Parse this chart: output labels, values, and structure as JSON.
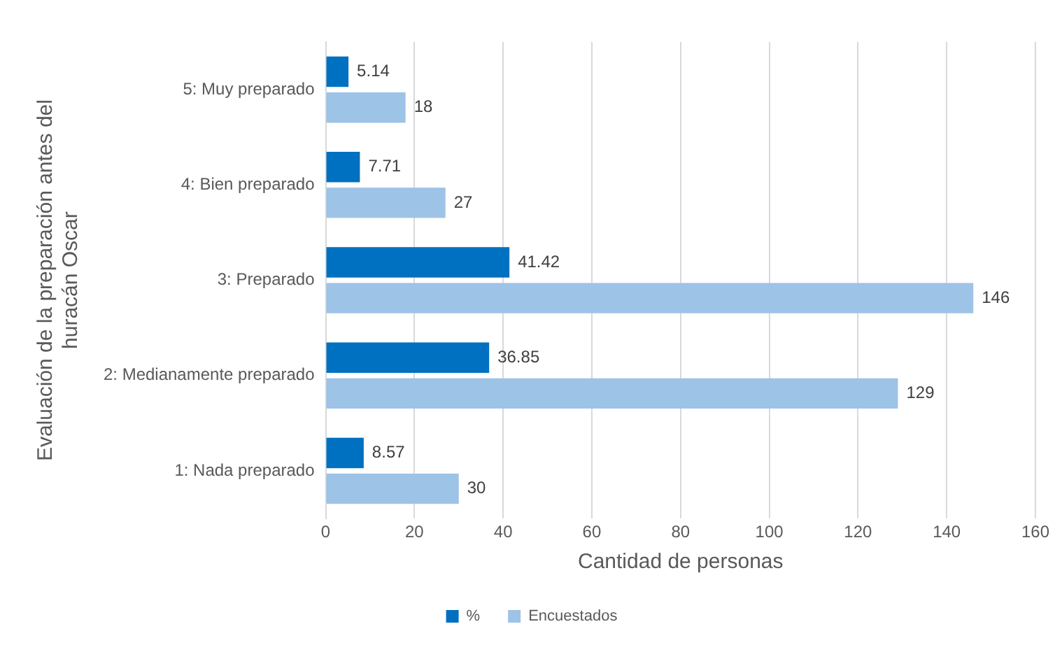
{
  "chart_data": {
    "type": "bar",
    "orientation": "horizontal",
    "xlabel": "Cantidad de personas",
    "ylabel": "Evaluación de la preparación antes del huracán Oscar",
    "categories": [
      "5: Muy preparado",
      "4: Bien preparado",
      "3: Preparado",
      "2: Medianamente preparado",
      "1: Nada preparado"
    ],
    "series": [
      {
        "name": "%",
        "color": "#0070c0",
        "values": [
          5.14,
          7.71,
          41.42,
          36.85,
          8.57
        ]
      },
      {
        "name": "Encuestados",
        "color": "#9dc3e6",
        "values": [
          18,
          27,
          146,
          129,
          30
        ]
      }
    ],
    "xlim": [
      0,
      160
    ],
    "xticks": [
      0,
      20,
      40,
      60,
      80,
      100,
      120,
      140,
      160
    ],
    "grid": "x",
    "data_labels": true,
    "legend": "bottom"
  }
}
